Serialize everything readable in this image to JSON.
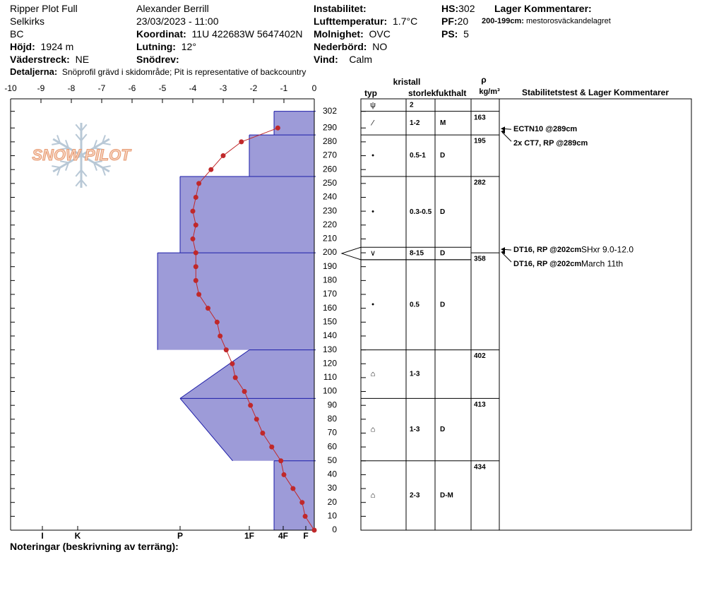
{
  "header": {
    "location": [
      "Ripper Plot Full",
      "Selkirks",
      "BC"
    ],
    "elevation": {
      "label": "Höjd:",
      "value": "1924 m"
    },
    "aspect": {
      "label": "Väderstreck:",
      "value": "NE"
    },
    "observer": "Alexander Berrill",
    "datetime": "23/03/2023 - 11:00",
    "coordinates": {
      "label": "Koordinat:",
      "value": "11U 422683W 5647402N"
    },
    "slope": {
      "label": "Lutning:",
      "value": "12°"
    },
    "wind_loading": {
      "label": "Snödrev:"
    },
    "instability": {
      "label": "Instabilitet:"
    },
    "air_temperature": {
      "label": "Lufttemperatur:",
      "value": "1.7°C"
    },
    "sky": {
      "label": "Molnighet:",
      "value": "OVC"
    },
    "precipitation": {
      "label": "Nederbörd:",
      "value": "NO"
    },
    "wind": {
      "label": "Vind:",
      "value": "Calm"
    },
    "hs": {
      "label": "HS:",
      "value": 302
    },
    "pf": {
      "label": "PF:",
      "value": 20
    },
    "ps": {
      "label": "PS:",
      "value": 5
    },
    "layer_comments": {
      "title": "Lager Kommentarer:",
      "items": [
        {
          "label": "200-199cm:",
          "text": "mestorosväckandelagret"
        }
      ]
    },
    "details": {
      "label": "Detaljerna:",
      "text": "Snöprofil grävd i skidområde;  Pit is representative of backcountry"
    }
  },
  "footer": {
    "notes_label": "Noteringar (beskrivning av terräng):"
  },
  "chart_data": {
    "type": "snow-profile",
    "logo": "SNOW PILOT",
    "xlim": [
      -10,
      0
    ],
    "xticks": [
      -10,
      -9,
      -8,
      -7,
      -6,
      -5,
      -4,
      -3,
      -2,
      -1,
      0
    ],
    "ylim": [
      0,
      311
    ],
    "yticks": [
      0,
      10,
      20,
      30,
      40,
      50,
      60,
      70,
      80,
      90,
      100,
      110,
      120,
      130,
      140,
      150,
      160,
      170,
      180,
      190,
      200,
      210,
      220,
      230,
      240,
      250,
      260,
      270,
      280,
      290,
      302
    ],
    "hardness_lim": [
      0,
      6.9
    ],
    "hardness_ticks": [
      {
        "value": 1,
        "label": "F"
      },
      {
        "value": 2,
        "label": "4F"
      },
      {
        "value": 3,
        "label": "1F"
      },
      {
        "value": 4,
        "label": "P"
      },
      {
        "value": 5,
        "label": "K"
      },
      {
        "value": 6,
        "label": "I"
      }
    ],
    "hardness_color": "#9d9bd8",
    "layer_line_color": "#1c1ca8",
    "layers": [
      {
        "top": 302,
        "bottom": 285,
        "hardness": [
          2.27,
          2.27
        ]
      },
      {
        "top": 285,
        "bottom": 255,
        "hardness": [
          3,
          3
        ]
      },
      {
        "top": 255,
        "bottom": 200,
        "hardness": [
          4,
          4
        ]
      },
      {
        "top": 200,
        "bottom": 130,
        "hardness": [
          4.22,
          4.22
        ]
      },
      {
        "top": 130,
        "bottom": 95,
        "hardness": [
          3,
          4
        ]
      },
      {
        "top": 95,
        "bottom": 50,
        "hardness": [
          4,
          3.24
        ]
      },
      {
        "top": 50,
        "bottom": 0,
        "hardness": [
          2.27,
          2.27
        ]
      }
    ],
    "temperature": {
      "color": "#c0282a",
      "heights": [
        290,
        280,
        270,
        260,
        250,
        240,
        230,
        220,
        210,
        200,
        190,
        180,
        170,
        160,
        150,
        140,
        130,
        120,
        110,
        100,
        90,
        80,
        70,
        60,
        50,
        40,
        30,
        20,
        10,
        0
      ],
      "values": [
        -1.2,
        -2.4,
        -3.0,
        -3.4,
        -3.8,
        -3.9,
        -4.0,
        -3.9,
        -4.0,
        -3.9,
        -3.9,
        -3.9,
        -3.8,
        -3.5,
        -3.2,
        -3.1,
        -2.9,
        -2.7,
        -2.6,
        -2.3,
        -2.1,
        -1.9,
        -1.7,
        -1.4,
        -1.1,
        -1.0,
        -0.7,
        -0.4,
        -0.3,
        0
      ]
    }
  },
  "stratigraphy": {
    "headers": {
      "crystal": "kristall",
      "type": "typ",
      "size": "storlek",
      "wetness": "fukthalt",
      "rho": "ρ",
      "density_unit": "kg/m³",
      "stability": "Stabilitetstest & Lager Kommentarer"
    },
    "surface": {
      "grain_type": "ψ",
      "grain_size": "2"
    },
    "rows": [
      {
        "top": 302,
        "bottom": 285,
        "grain_type": "⁄",
        "grain_size": "1-2",
        "wetness": "M"
      },
      {
        "top": 285,
        "bottom": 255,
        "grain_type": "•",
        "grain_size": "0.5-1",
        "wetness": "D"
      },
      {
        "top": 255,
        "bottom": 204,
        "grain_type": "•",
        "grain_size": "0.3-0.5",
        "wetness": "D"
      },
      {
        "top": 204,
        "bottom": 195,
        "grain_type": "∨",
        "grain_size": "8-15",
        "wetness": "D"
      },
      {
        "top": 195,
        "bottom": 130,
        "grain_type": "•",
        "grain_size": "0.5",
        "wetness": "D"
      },
      {
        "top": 130,
        "bottom": 95,
        "grain_type": "⌂",
        "grain_size": "1-3"
      },
      {
        "top": 95,
        "bottom": 50,
        "grain_type": "⌂",
        "grain_size": "1-3",
        "wetness": "D"
      },
      {
        "top": 50,
        "bottom": 0,
        "grain_type": "⌂",
        "grain_size": "2-3",
        "wetness": "D-M"
      }
    ],
    "densities": [
      {
        "top": 302,
        "value": 163
      },
      {
        "top": 285,
        "value": 195
      },
      {
        "top": 255,
        "value": 282
      },
      {
        "top": 200,
        "value": 358
      },
      {
        "top": 130,
        "value": 402
      },
      {
        "top": 95,
        "value": 413
      },
      {
        "top": 50,
        "value": 434
      }
    ],
    "tests": [
      {
        "height": 289,
        "test": "ECTN10 @289cm"
      },
      {
        "height": 289,
        "test": "2x CT7, RP @289cm"
      },
      {
        "height": 202,
        "test": "DT16, RP @202cm",
        "note": "SHxr 9.0-12.0"
      },
      {
        "height": 202,
        "test": "DT16, RP @202cm",
        "note": "March 11th"
      }
    ]
  }
}
